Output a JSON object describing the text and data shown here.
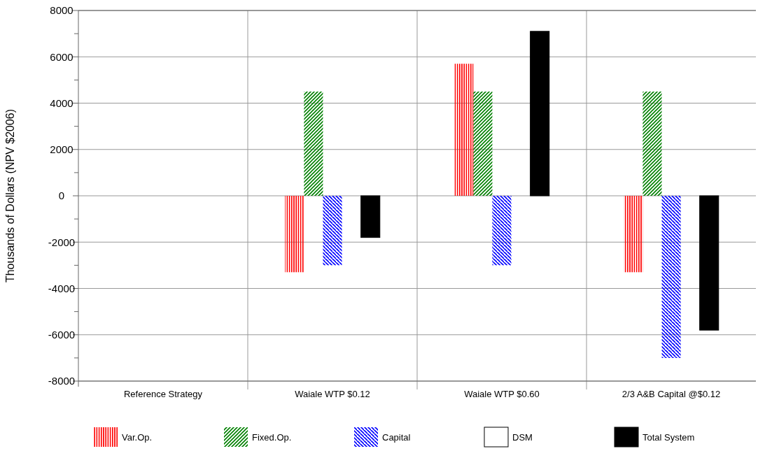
{
  "chart_data": {
    "type": "bar",
    "ylabel": "Thousands of Dollars (NPV $2006)",
    "categories": [
      "Reference Strategy",
      "Waiale WTP $0.12",
      "Waiale WTP $0.60",
      "2/3 A&B Capital @$0.12"
    ],
    "series": [
      {
        "name": "Var.Op.",
        "color": "#ff0000",
        "values": [
          0,
          -3300,
          5700,
          -3300
        ]
      },
      {
        "name": "Fixed.Op.",
        "color": "#008000",
        "values": [
          0,
          4500,
          4500,
          4500
        ]
      },
      {
        "name": "Capital",
        "color": "#0000ff",
        "values": [
          0,
          -3000,
          -3000,
          -7000
        ]
      },
      {
        "name": "DSM",
        "color": "#ffffff",
        "values": [
          0,
          0,
          0,
          0
        ]
      },
      {
        "name": "Total System",
        "color": "#000000",
        "values": [
          0,
          -1800,
          7100,
          -5800
        ]
      }
    ],
    "ylim": [
      -8000,
      8000
    ],
    "yticks": [
      -8000,
      {
        "value": -7000,
        "label": null
      },
      -6000,
      {
        "value": -5000,
        "label": null
      },
      -4000,
      {
        "value": -3000,
        "label": null
      },
      -2000,
      {
        "value": -1000,
        "label": null
      },
      0,
      {
        "value": 1000,
        "label": null
      },
      2000,
      {
        "value": 3000,
        "label": null
      },
      4000,
      {
        "value": 5000,
        "label": null
      },
      6000,
      {
        "value": 7000,
        "label": null
      },
      8000
    ],
    "grid": true,
    "legend": "bottom"
  }
}
